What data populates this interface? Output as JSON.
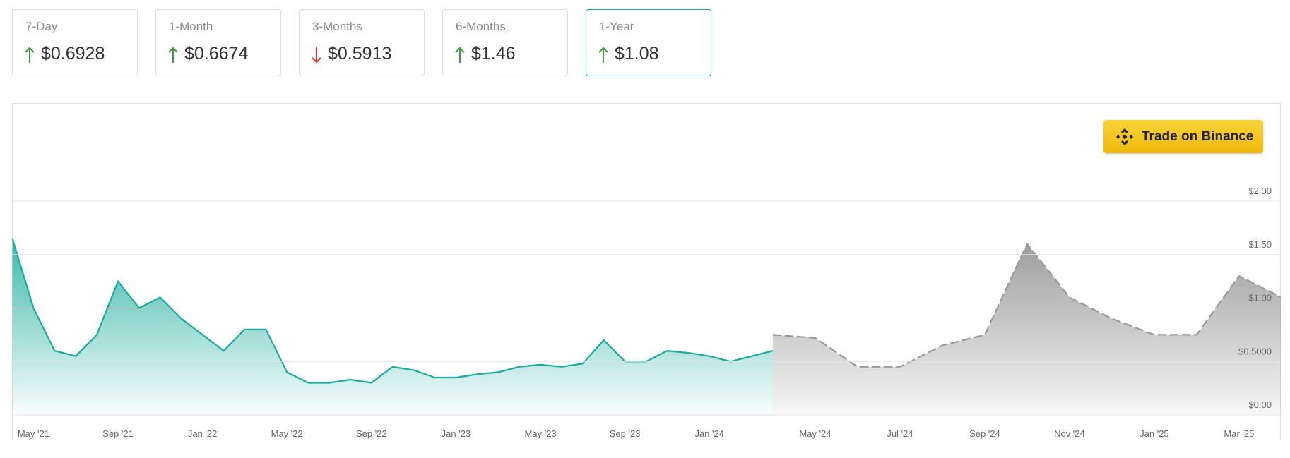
{
  "cards": [
    {
      "label": "7-Day",
      "value": "$0.6928",
      "direction": "up",
      "selected": false
    },
    {
      "label": "1-Month",
      "value": "$0.6674",
      "direction": "up",
      "selected": false
    },
    {
      "label": "3-Months",
      "value": "$0.5913",
      "direction": "down",
      "selected": false
    },
    {
      "label": "6-Months",
      "value": "$1.46",
      "direction": "up",
      "selected": false
    },
    {
      "label": "1-Year",
      "value": "$1.08",
      "direction": "up",
      "selected": true
    }
  ],
  "button": {
    "label": "Trade on Binance"
  },
  "chart_data": {
    "type": "line",
    "series": [
      {
        "color": "#1aab9b",
        "style": "solid",
        "x": [
          "2021-04",
          "2021-05",
          "2021-06",
          "2021-07",
          "2021-08",
          "2021-09",
          "2021-10",
          "2021-11",
          "2021-12",
          "2022-01",
          "2022-02",
          "2022-03",
          "2022-04",
          "2022-05",
          "2022-06",
          "2022-07",
          "2022-08",
          "2022-09",
          "2022-10",
          "2022-11",
          "2022-12",
          "2023-01",
          "2023-02",
          "2023-03",
          "2023-04",
          "2023-05",
          "2023-06",
          "2023-07",
          "2023-08",
          "2023-09",
          "2023-10",
          "2023-11",
          "2023-12",
          "2024-01",
          "2024-02",
          "2024-03",
          "2024-04"
        ],
        "values": [
          1.65,
          1.0,
          0.6,
          0.55,
          0.75,
          1.25,
          1.0,
          1.1,
          0.9,
          0.75,
          0.6,
          0.8,
          0.8,
          0.4,
          0.3,
          0.3,
          0.33,
          0.3,
          0.45,
          0.42,
          0.35,
          0.35,
          0.38,
          0.4,
          0.45,
          0.47,
          0.45,
          0.48,
          0.7,
          0.5,
          0.5,
          0.6,
          0.58,
          0.55,
          0.5,
          0.55,
          0.6
        ]
      },
      {
        "color": "#999999",
        "style": "dashed",
        "x": [
          "2024-04",
          "2024-05",
          "2024-06",
          "2024-07",
          "2024-08",
          "2024-09",
          "2024-10",
          "2024-11",
          "2024-12",
          "2025-01",
          "2025-02",
          "2025-03",
          "2025-04"
        ],
        "values": [
          0.75,
          0.72,
          0.45,
          0.45,
          0.65,
          0.75,
          1.6,
          1.1,
          0.9,
          0.75,
          0.75,
          1.3,
          1.1
        ]
      }
    ],
    "ylim": [
      0,
      2.9
    ],
    "yticks": [
      {
        "value": 0,
        "label": "$0.00"
      },
      {
        "value": 0.5,
        "label": "$0.5000"
      },
      {
        "value": 1,
        "label": "$1.00"
      },
      {
        "value": 1.5,
        "label": "$1.50"
      },
      {
        "value": 2,
        "label": "$2.00"
      }
    ],
    "xticks": [
      {
        "value": "2021-05",
        "label": "May '21"
      },
      {
        "value": "2021-09",
        "label": "Sep '21"
      },
      {
        "value": "2022-01",
        "label": "Jan '22"
      },
      {
        "value": "2022-05",
        "label": "May '22"
      },
      {
        "value": "2022-09",
        "label": "Sep '22"
      },
      {
        "value": "2023-01",
        "label": "Jan '23"
      },
      {
        "value": "2023-05",
        "label": "May '23"
      },
      {
        "value": "2023-09",
        "label": "Sep '23"
      },
      {
        "value": "2024-01",
        "label": "Jan '24"
      },
      {
        "value": "2024-05",
        "label": "May '24"
      },
      {
        "value": "2024-07",
        "label": "Jul '24"
      },
      {
        "value": "2024-09",
        "label": "Sep '24"
      },
      {
        "value": "2024-11",
        "label": "Nov '24"
      },
      {
        "value": "2025-01",
        "label": "Jan '25"
      },
      {
        "value": "2025-03",
        "label": "Mar '25"
      }
    ],
    "grid": true
  }
}
